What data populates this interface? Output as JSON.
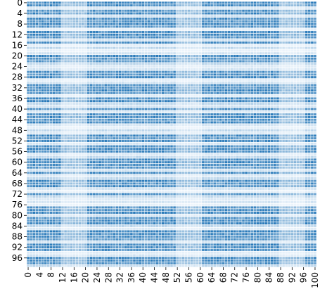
{
  "chart_data": {
    "type": "heatmap",
    "title": "",
    "xlabel": "",
    "ylabel": "",
    "x": {
      "min": 0,
      "max": 100,
      "tick_step": 4,
      "tick_labels": [
        "0",
        "4",
        "8",
        "12",
        "16",
        "20",
        "24",
        "28",
        "32",
        "36",
        "40",
        "44",
        "48",
        "52",
        "56",
        "60",
        "64",
        "68",
        "72",
        "76",
        "80",
        "84",
        "88",
        "92",
        "96",
        "100"
      ]
    },
    "y": {
      "min": 0,
      "max": 99,
      "tick_step": 4,
      "tick_labels": [
        "0",
        "4",
        "8",
        "12",
        "16",
        "20",
        "24",
        "28",
        "32",
        "36",
        "40",
        "44",
        "48",
        "52",
        "56",
        "60",
        "64",
        "68",
        "72",
        "76",
        "80",
        "84",
        "88",
        "92",
        "96"
      ]
    },
    "colorscale": {
      "low": "#f7fbff",
      "high": "#2b7bba",
      "cell_border": "#ffffff"
    },
    "colorbar": false,
    "row_intensity": [
      0.95,
      0.9,
      0.15,
      0.85,
      0.95,
      0.2,
      0.9,
      0.85,
      0.95,
      0.8,
      0.1,
      0.9,
      0.95,
      0.85,
      0.2,
      0.9,
      0.1,
      0.3,
      0.1,
      0.2,
      0.95,
      0.85,
      0.8,
      0.3,
      0.15,
      0.2,
      0.85,
      0.9,
      0.95,
      0.1,
      0.2,
      0.85,
      0.9,
      0.95,
      0.8,
      0.15,
      0.9,
      0.95,
      0.3,
      0.2,
      0.85,
      0.15,
      0.9,
      0.95,
      0.85,
      0.9,
      0.2,
      0.1,
      0.3,
      0.15,
      0.95,
      0.8,
      0.9,
      0.2,
      0.85,
      0.95,
      0.9,
      0.15,
      0.3,
      0.9,
      0.95,
      0.85,
      0.8,
      0.2,
      0.9,
      0.15,
      0.3,
      0.95,
      0.85,
      0.9,
      0.2,
      0.1,
      0.85,
      0.3,
      0.15,
      0.2,
      0.1,
      0.85,
      0.9,
      0.95,
      0.2,
      0.85,
      0.9,
      0.95,
      0.3,
      0.15,
      0.95,
      0.9,
      0.85,
      0.8,
      0.2,
      0.95,
      0.9,
      0.85,
      0.15,
      0.2,
      0.95,
      0.9,
      0.85,
      0.3
    ],
    "column_fade_ranges": [
      [
        12,
        20
      ],
      [
        52,
        60
      ],
      [
        88,
        96
      ]
    ]
  }
}
